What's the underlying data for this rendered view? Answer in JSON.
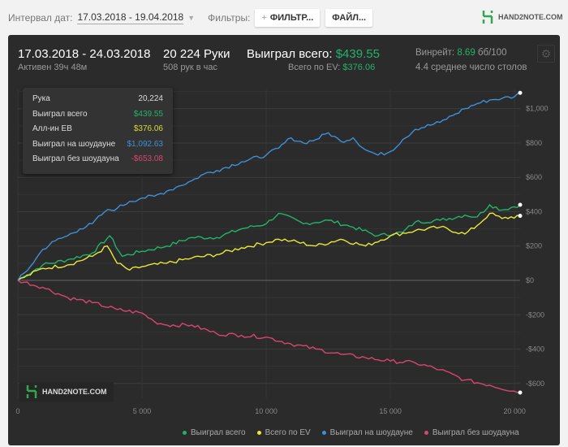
{
  "toolbar": {
    "interval_label": "Интервал дат:",
    "interval_value": "17.03.2018 - 19.04.2018",
    "filters_label": "Фильтры:",
    "filter_button": "ФИЛЬТР...",
    "file_button": "ФАЙЛ...",
    "logo": "HAND2NOTE.COM"
  },
  "summary": {
    "date_range": "17.03.2018 - 24.03.2018",
    "active": "Активен 39ч 48м",
    "hands": "20 224 Руки",
    "hands_per_hour": "508 рук в час",
    "won_label": "Выиграл всего:",
    "won_value": "$439.55",
    "ev_label": "Всего по EV:",
    "ev_value": "$376.06",
    "winrate_label": "Винрейт:",
    "winrate_value": "8.69",
    "winrate_unit": "бб/100",
    "tables": "4.4 среднее число столов"
  },
  "tooltip": [
    {
      "label": "Рука",
      "value": "20,224"
    },
    {
      "label": "Выиграл всего",
      "value": "$439.55"
    },
    {
      "label": "Алл-ин EB",
      "value": "$376.06"
    },
    {
      "label": "Выиграл на шоудауне",
      "value": "$1,092.63"
    },
    {
      "label": "Выиграл без шоудауна",
      "value": "-$653.08"
    }
  ],
  "watermark": "HAND2NOTE.COM",
  "colors": {
    "green": "#21b36b",
    "yellow": "#e8e83a",
    "blue": "#3f8fd8",
    "pink": "#d8466f"
  },
  "chart_data": {
    "type": "line",
    "xlim": [
      0,
      20224
    ],
    "ylim": [
      -700,
      1150
    ],
    "x_ticks": [
      {
        "v": 0,
        "label": "0"
      },
      {
        "v": 5000,
        "label": "5 000"
      },
      {
        "v": 10000,
        "label": "10 000"
      },
      {
        "v": 15000,
        "label": "15 000"
      },
      {
        "v": 20000,
        "label": "20 000"
      }
    ],
    "y_ticks": [
      {
        "v": 1000,
        "label": "$1,000"
      },
      {
        "v": 800,
        "label": "$800"
      },
      {
        "v": 600,
        "label": "$600"
      },
      {
        "v": 400,
        "label": "$400"
      },
      {
        "v": 200,
        "label": "$200"
      },
      {
        "v": 0,
        "label": "$0"
      },
      {
        "v": -200,
        "label": "-$200"
      },
      {
        "v": -400,
        "label": "-$400"
      },
      {
        "v": -600,
        "label": "-$600"
      }
    ],
    "series": [
      {
        "name": "Выиграл всего",
        "color": "#21b36b",
        "points": [
          [
            0,
            0
          ],
          [
            1000,
            90
          ],
          [
            2000,
            120
          ],
          [
            3000,
            160
          ],
          [
            3700,
            260
          ],
          [
            4200,
            140
          ],
          [
            5000,
            170
          ],
          [
            6000,
            200
          ],
          [
            7000,
            250
          ],
          [
            8000,
            250
          ],
          [
            9000,
            300
          ],
          [
            10000,
            330
          ],
          [
            10500,
            390
          ],
          [
            11500,
            330
          ],
          [
            12500,
            350
          ],
          [
            13500,
            310
          ],
          [
            14500,
            260
          ],
          [
            15500,
            280
          ],
          [
            16000,
            340
          ],
          [
            17000,
            350
          ],
          [
            18000,
            380
          ],
          [
            18500,
            370
          ],
          [
            19000,
            440
          ],
          [
            19500,
            410
          ],
          [
            20224,
            440
          ]
        ]
      },
      {
        "name": "Всего по EV",
        "color": "#e8e83a",
        "points": [
          [
            0,
            0
          ],
          [
            1000,
            70
          ],
          [
            2000,
            90
          ],
          [
            3000,
            140
          ],
          [
            3600,
            200
          ],
          [
            4000,
            100
          ],
          [
            4500,
            60
          ],
          [
            5000,
            80
          ],
          [
            6000,
            100
          ],
          [
            7000,
            130
          ],
          [
            8000,
            150
          ],
          [
            9000,
            190
          ],
          [
            10000,
            220
          ],
          [
            10500,
            240
          ],
          [
            11000,
            230
          ],
          [
            12000,
            200
          ],
          [
            13000,
            240
          ],
          [
            14000,
            200
          ],
          [
            15000,
            260
          ],
          [
            16000,
            290
          ],
          [
            17000,
            310
          ],
          [
            18000,
            270
          ],
          [
            18500,
            320
          ],
          [
            19000,
            390
          ],
          [
            19500,
            360
          ],
          [
            20224,
            376
          ]
        ]
      },
      {
        "name": "Выиграл на шоудауне",
        "color": "#3f8fd8",
        "points": [
          [
            0,
            0
          ],
          [
            500,
            80
          ],
          [
            1000,
            180
          ],
          [
            1500,
            230
          ],
          [
            2000,
            260
          ],
          [
            2500,
            300
          ],
          [
            3000,
            330
          ],
          [
            3500,
            400
          ],
          [
            4000,
            420
          ],
          [
            4500,
            460
          ],
          [
            5000,
            480
          ],
          [
            5500,
            490
          ],
          [
            6000,
            520
          ],
          [
            6500,
            550
          ],
          [
            7000,
            580
          ],
          [
            7500,
            620
          ],
          [
            8000,
            640
          ],
          [
            9000,
            690
          ],
          [
            10000,
            730
          ],
          [
            10500,
            770
          ],
          [
            11000,
            830
          ],
          [
            11500,
            800
          ],
          [
            12000,
            820
          ],
          [
            12500,
            860
          ],
          [
            13000,
            810
          ],
          [
            13500,
            830
          ],
          [
            14000,
            760
          ],
          [
            14500,
            730
          ],
          [
            15000,
            750
          ],
          [
            15500,
            820
          ],
          [
            16000,
            880
          ],
          [
            17000,
            920
          ],
          [
            17500,
            960
          ],
          [
            18000,
            1000
          ],
          [
            18500,
            1030
          ],
          [
            19000,
            1050
          ],
          [
            19500,
            1060
          ],
          [
            20000,
            1070
          ],
          [
            20224,
            1092
          ]
        ]
      },
      {
        "name": "Выиграл без шоудауна",
        "color": "#d8466f",
        "points": [
          [
            0,
            0
          ],
          [
            1000,
            -40
          ],
          [
            2000,
            -100
          ],
          [
            3000,
            -130
          ],
          [
            4000,
            -170
          ],
          [
            5000,
            -190
          ],
          [
            5500,
            -240
          ],
          [
            6000,
            -260
          ],
          [
            7000,
            -260
          ],
          [
            8000,
            -310
          ],
          [
            9000,
            -320
          ],
          [
            10000,
            -330
          ],
          [
            11000,
            -370
          ],
          [
            12000,
            -400
          ],
          [
            13000,
            -430
          ],
          [
            14000,
            -450
          ],
          [
            15000,
            -470
          ],
          [
            16000,
            -480
          ],
          [
            17000,
            -520
          ],
          [
            18000,
            -580
          ],
          [
            19000,
            -610
          ],
          [
            20224,
            -653
          ]
        ]
      }
    ]
  }
}
